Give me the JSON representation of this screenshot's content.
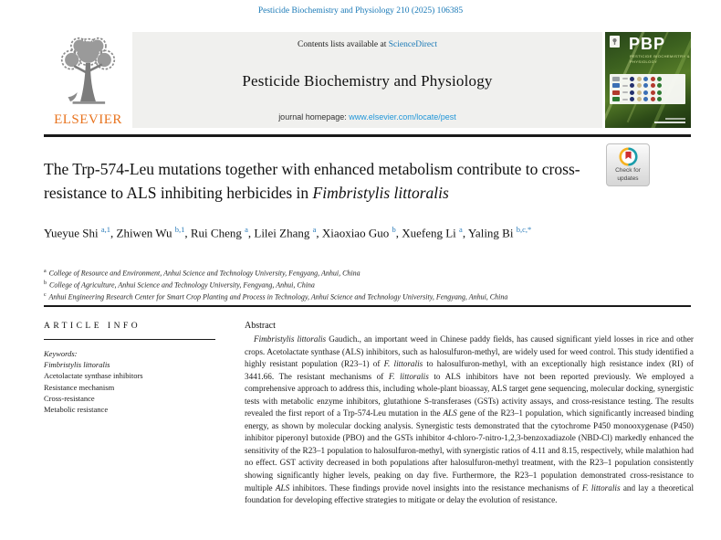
{
  "page": {
    "citation": "Pesticide Biochemistry and Physiology 210 (2025) 106385"
  },
  "header": {
    "contents_prefix": "Contents lists available at ",
    "contents_link": "ScienceDirect",
    "journal_title": "Pesticide Biochemistry and Physiology",
    "homepage_prefix": "journal homepage: ",
    "homepage_link": "www.elsevier.com/locate/pest",
    "elsevier_logo_text": "ELSEVIER",
    "cover": {
      "logo": "PBP",
      "subtitle": "PESTICIDE BIOCHEMISTRY & PHYSIOLOGY"
    }
  },
  "article": {
    "title_segments": [
      {
        "text": "The Trp-574-Leu mutations together with enhanced metabolism contribute to cross-resistance to ALS inhibiting herbicides in ",
        "italic": false
      },
      {
        "text": "Fimbristylis littoralis",
        "italic": true
      }
    ],
    "badge": {
      "line1": "Check for",
      "line2": "updates"
    },
    "authors": [
      {
        "name": "Yueyue Shi",
        "sup": "a,1"
      },
      {
        "name": "Zhiwen Wu",
        "sup": "b,1"
      },
      {
        "name": "Rui Cheng",
        "sup": "a"
      },
      {
        "name": "Lilei Zhang",
        "sup": "a"
      },
      {
        "name": "Xiaoxiao Guo",
        "sup": "b"
      },
      {
        "name": "Xuefeng Li",
        "sup": "a"
      },
      {
        "name": "Yaling Bi",
        "sup": "b,c,*"
      }
    ],
    "affiliations": [
      {
        "sup": "a",
        "text": "College of Resource and Environment, Anhui Science and Technology University, Fengyang, Anhui, China"
      },
      {
        "sup": "b",
        "text": "College of Agriculture, Anhui Science and Technology University, Fengyang, Anhui, China"
      },
      {
        "sup": "c",
        "text": "Anhui Engineering Research Center for Smart Crop Planting and Process in Technology, Anhui Science and Technology University, Fengyang, Anhui, China"
      }
    ]
  },
  "article_info": {
    "heading": "ARTICLE INFO",
    "keywords_label": "Keywords:",
    "keywords": [
      {
        "text": "Fimbristylis littoralis",
        "italic": true
      },
      {
        "text": "Acetolactate synthase inhibitors",
        "italic": false
      },
      {
        "text": "Resistance mechanism",
        "italic": false
      },
      {
        "text": "Cross-resistance",
        "italic": false
      },
      {
        "text": "Metabolic resistance",
        "italic": false
      }
    ]
  },
  "abstract": {
    "heading": "Abstract",
    "segments": [
      {
        "text": "Fimbristylis littoralis",
        "italic": true
      },
      {
        "text": " Gaudich., an important weed in Chinese paddy fields, has caused significant yield losses in rice and other crops. Acetolactate synthase (ALS) inhibitors, such as halosulfuron-methyl, are widely used for weed control. This study identified a highly resistant population (R23–1) of ",
        "italic": false
      },
      {
        "text": "F. littoralis",
        "italic": true
      },
      {
        "text": " to halosulfuron-methyl, with an exceptionally high resistance index (RI) of 3441.66. The resistant mechanisms of ",
        "italic": false
      },
      {
        "text": "F. littoralis",
        "italic": true
      },
      {
        "text": " to ALS inhibitors have not been reported previously. We employed a comprehensive approach to address this, including whole-plant bioassay, ALS target gene sequencing, molecular docking, synergistic tests with metabolic enzyme inhibitors, glutathione S-transferases (GSTs) activity assays, and cross-resistance testing. The results revealed the first report of a Trp-574-Leu mutation in the ",
        "italic": false
      },
      {
        "text": "ALS",
        "italic": true
      },
      {
        "text": " gene of the R23–1 population, which significantly increased binding energy, as shown by molecular docking analysis. Synergistic tests demonstrated that the cytochrome P450 monooxygenase (P450) inhibitor piperonyl butoxide (PBO) and the GSTs inhibitor 4-chloro-7-nitro-1,2,3-benzoxadiazole (NBD-Cl) markedly enhanced the sensitivity of the R23–1 population to halosulfuron-methyl, with synergistic ratios of 4.11 and 8.15, respectively, while malathion had no effect. GST activity decreased in both populations after halosulfuron-methyl treatment, with the R23–1 population consistently showing significantly higher levels, peaking on day five. Furthermore, the R23–1 population demonstrated cross-resistance to multiple ",
        "italic": false
      },
      {
        "text": "ALS",
        "italic": true
      },
      {
        "text": " inhibitors. These findings provide novel insights into the resistance mechanisms of ",
        "italic": false
      },
      {
        "text": "F. littoralis",
        "italic": true
      },
      {
        "text": " and lay a theoretical foundation for developing effective strategies to mitigate or delay the evolution of resistance.",
        "italic": false
      }
    ]
  },
  "colors": {
    "link_blue": "#1878b6",
    "homepage_link_blue": "#2196d8",
    "elsevier_orange": "#e8731e",
    "sup_blue": "#2b7cba"
  }
}
